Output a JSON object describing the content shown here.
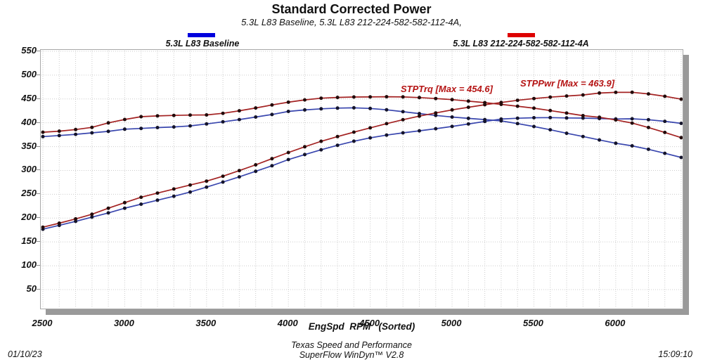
{
  "window": {
    "title": "Standard Corrected Power",
    "subtitle": "5.3L L83 Baseline, 5.3L L83 212-224-582-582-112-4A,"
  },
  "legend": {
    "items": [
      {
        "label": "5.3L L83 Baseline",
        "color": "#0000dd"
      },
      {
        "label": "5.3L L83 212-224-582-582-112-4A",
        "color": "#dd0000"
      }
    ]
  },
  "annotations": {
    "trq_max_label": "STPTrq [Max = 454.6]",
    "pwr_max_label": "STPPwr [Max = 463.9]",
    "color": "#b51414"
  },
  "axes": {
    "y_ticks": [
      550,
      500,
      450,
      400,
      350,
      300,
      250,
      200,
      150,
      100,
      50
    ],
    "x_ticks": [
      2500,
      3000,
      3500,
      4000,
      4500,
      5000,
      5500,
      6000
    ],
    "xlabel": "EngSpd  RPM   (Sorted)"
  },
  "footer": {
    "org": "Texas Speed and Performance",
    "app": "SuperFlow WinDyn™ V2.8",
    "date": "01/10/23",
    "time": "15:09:10"
  },
  "chart_data": {
    "type": "line",
    "title": "Standard Corrected Power",
    "subtitle": "5.3L L83 Baseline, 5.3L L83 212-224-582-582-112-4A,",
    "xlabel": "EngSpd RPM (Sorted)",
    "ylabel": "",
    "xlim": [
      2500,
      6400
    ],
    "ylim": [
      50,
      550
    ],
    "grid": true,
    "legend_position": "top",
    "x_rpm": [
      2500,
      2600,
      2700,
      2800,
      2900,
      3000,
      3100,
      3200,
      3300,
      3400,
      3500,
      3600,
      3700,
      3800,
      3900,
      4000,
      4100,
      4200,
      4300,
      4400,
      4500,
      4600,
      4700,
      4800,
      4900,
      5000,
      5100,
      5200,
      5300,
      5400,
      5500,
      5600,
      5700,
      5800,
      5900,
      6000,
      6100,
      6200,
      6300,
      6400
    ],
    "series": [
      {
        "name": "5.3L L83 Baseline STPTrq",
        "run": "baseline",
        "channel": "STPTrq",
        "color": "#3946ae",
        "dot_color": "#14142c",
        "values": [
          371.0,
          373.2,
          375.8,
          378.9,
          382.0,
          386.6,
          388.2,
          389.9,
          391.2,
          393.4,
          397.6,
          402.0,
          406.8,
          412.1,
          417.3,
          423.8,
          427.0,
          429.3,
          430.8,
          431.3,
          430.0,
          427.2,
          423.3,
          419.2,
          415.4,
          412.1,
          409.2,
          406.8,
          404.0,
          398.3,
          392.1,
          385.4,
          378.0,
          371.2,
          364.0,
          357.1,
          351.6,
          344.3,
          336.0,
          327.2
        ]
      },
      {
        "name": "5.3L L83 Baseline STPPwr",
        "run": "baseline",
        "channel": "STPPwr",
        "color": "#3946ae",
        "dot_color": "#14142c",
        "values": [
          176.6,
          184.8,
          193.2,
          202.0,
          210.9,
          220.8,
          229.1,
          237.6,
          245.8,
          254.7,
          265.0,
          275.6,
          286.6,
          298.2,
          309.9,
          322.8,
          333.3,
          343.3,
          352.7,
          361.3,
          368.4,
          374.2,
          378.8,
          383.1,
          387.6,
          392.3,
          397.4,
          402.8,
          407.7,
          409.5,
          410.6,
          410.9,
          410.2,
          409.9,
          408.9,
          407.9,
          408.4,
          406.4,
          403.0,
          398.7
        ]
      },
      {
        "name": "5.3L L83 212-224-582-582-112-4A STPTrq",
        "run": "cam",
        "channel": "STPTrq",
        "max": 454.6,
        "color": "#a32222",
        "dot_color": "#230b0b",
        "values": [
          380.2,
          382.4,
          385.8,
          390.3,
          399.8,
          406.9,
          412.8,
          414.4,
          415.4,
          416.2,
          416.5,
          419.8,
          425.2,
          431.0,
          437.4,
          443.1,
          448.0,
          451.6,
          453.2,
          454.1,
          454.3,
          454.6,
          454.2,
          452.9,
          450.8,
          448.6,
          445.4,
          442.3,
          438.6,
          434.8,
          430.6,
          425.6,
          420.3,
          415.0,
          411.6,
          406.0,
          399.4,
          390.1,
          379.8,
          368.9
        ]
      },
      {
        "name": "5.3L L83 212-224-582-582-112-4A STPPwr",
        "run": "cam",
        "channel": "STPPwr",
        "max": 463.9,
        "color": "#a32222",
        "dot_color": "#230b0b",
        "values": [
          180.9,
          189.3,
          198.3,
          208.1,
          220.8,
          232.4,
          243.7,
          252.5,
          261.0,
          269.4,
          277.6,
          287.8,
          299.6,
          311.8,
          324.8,
          337.5,
          349.7,
          361.1,
          371.1,
          380.4,
          389.3,
          398.2,
          406.5,
          413.9,
          420.6,
          427.1,
          432.5,
          437.9,
          442.6,
          447.1,
          450.9,
          453.8,
          456.2,
          458.3,
          462.4,
          463.8,
          463.9,
          460.5,
          455.6,
          449.5
        ]
      }
    ]
  }
}
